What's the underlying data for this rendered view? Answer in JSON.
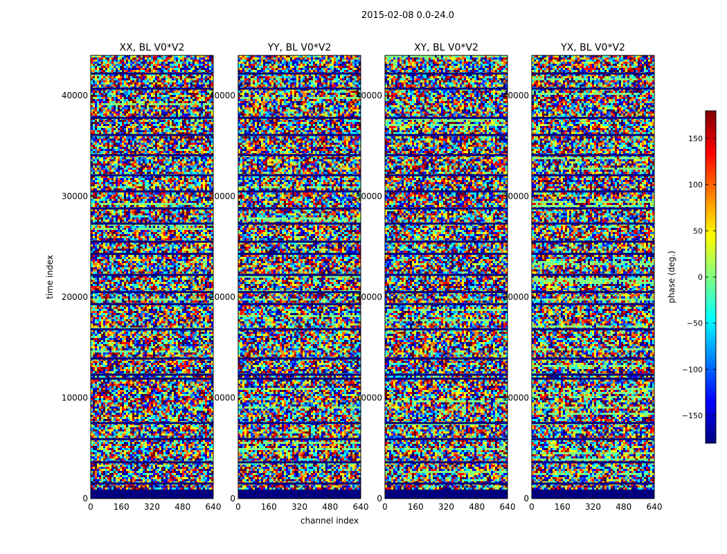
{
  "figure": {
    "suptitle": "2015-02-08 0.0-24.0"
  },
  "chart_data": {
    "type": "heatmap",
    "title": "2015-02-08 0.0-24.0",
    "xlabel": "channel index",
    "ylabel": "time index",
    "xlim": [
      0,
      640
    ],
    "ylim": [
      0,
      44000
    ],
    "xticks": [
      0,
      160,
      320,
      480,
      640
    ],
    "yticks": [
      0,
      10000,
      20000,
      30000,
      40000
    ],
    "panels": [
      {
        "title": "XX, BL V0*V2"
      },
      {
        "title": "YY, BL V0*V2"
      },
      {
        "title": "XY, BL V0*V2"
      },
      {
        "title": "YX, BL V0*V2"
      }
    ],
    "colorbar": {
      "label": "phase (deg.)",
      "range": [
        -180,
        180
      ],
      "ticks": [
        -150,
        -100,
        -50,
        0,
        50,
        100,
        150
      ],
      "tick_labels": [
        "−150",
        "−100",
        "−50",
        "0",
        "50",
        "100",
        "150"
      ],
      "colormap": "jet",
      "colors": [
        "#00007f",
        "#0000ff",
        "#0080ff",
        "#00ffff",
        "#80ff80",
        "#ffff00",
        "#ff8000",
        "#ff0000",
        "#7f0000"
      ]
    },
    "flagged_rows_time_index": [
      200,
      400,
      800,
      1500,
      3600,
      5900,
      7500,
      11900,
      12300,
      13900,
      16800,
      19300,
      20500,
      22200,
      24300,
      25500,
      27300,
      28800,
      30500,
      32100,
      34100,
      36100,
      37800,
      40700,
      42200
    ]
  }
}
